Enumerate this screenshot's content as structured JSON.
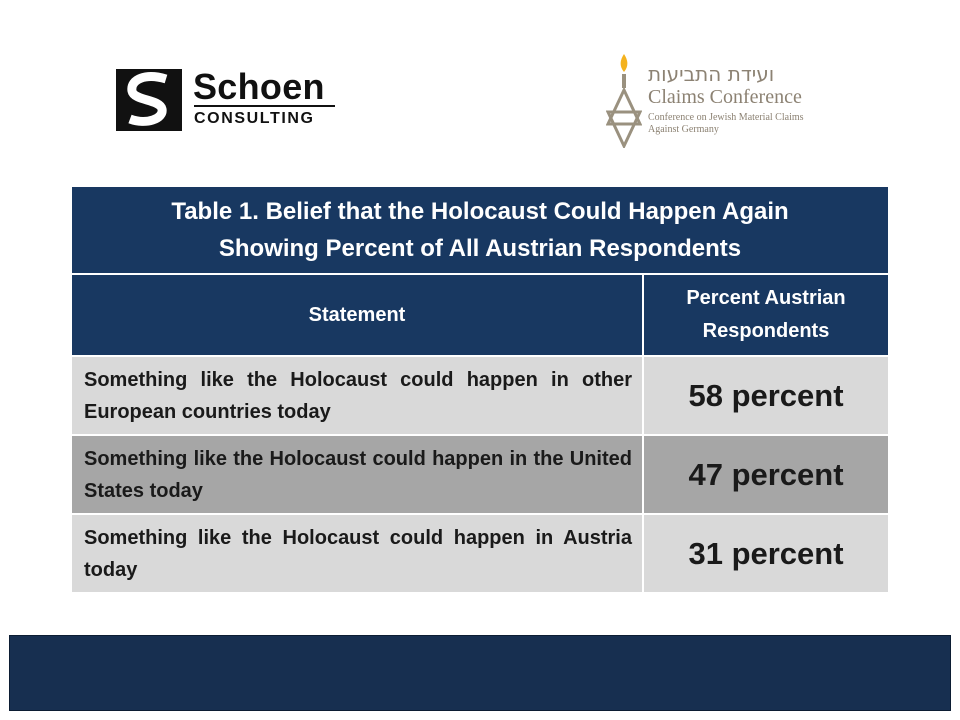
{
  "logos": {
    "schoen": {
      "name": "Schoen",
      "sub": "CONSULTING"
    },
    "claims_conference": {
      "hebrew": "ועידת התביעות",
      "name": "Claims Conference",
      "tagline_1": "Conference on Jewish Material Claims",
      "tagline_2": "Against Germany"
    }
  },
  "table": {
    "title_line_1": "Table 1. Belief that the Holocaust Could Happen Again",
    "title_line_2": "Showing Percent of All Austrian Respondents",
    "headers": {
      "statement": "Statement",
      "percent_line_1": "Percent Austrian",
      "percent_line_2": "Respondents"
    },
    "rows": [
      {
        "statement": "Something like the Holocaust could happen in other European countries today",
        "percent": "58 percent"
      },
      {
        "statement": "Something like the Holocaust could happen in the United States today",
        "percent": "47 percent"
      },
      {
        "statement": "Something like the Holocaust could happen in Austria today",
        "percent": "31 percent"
      }
    ]
  },
  "colors": {
    "header_navy": "#183861",
    "footer_navy": "#172f50",
    "row_light": "#d9d9d9",
    "row_dark": "#a6a6a6",
    "logo_gray": "#8c8273",
    "flame": "#f4b21e"
  }
}
